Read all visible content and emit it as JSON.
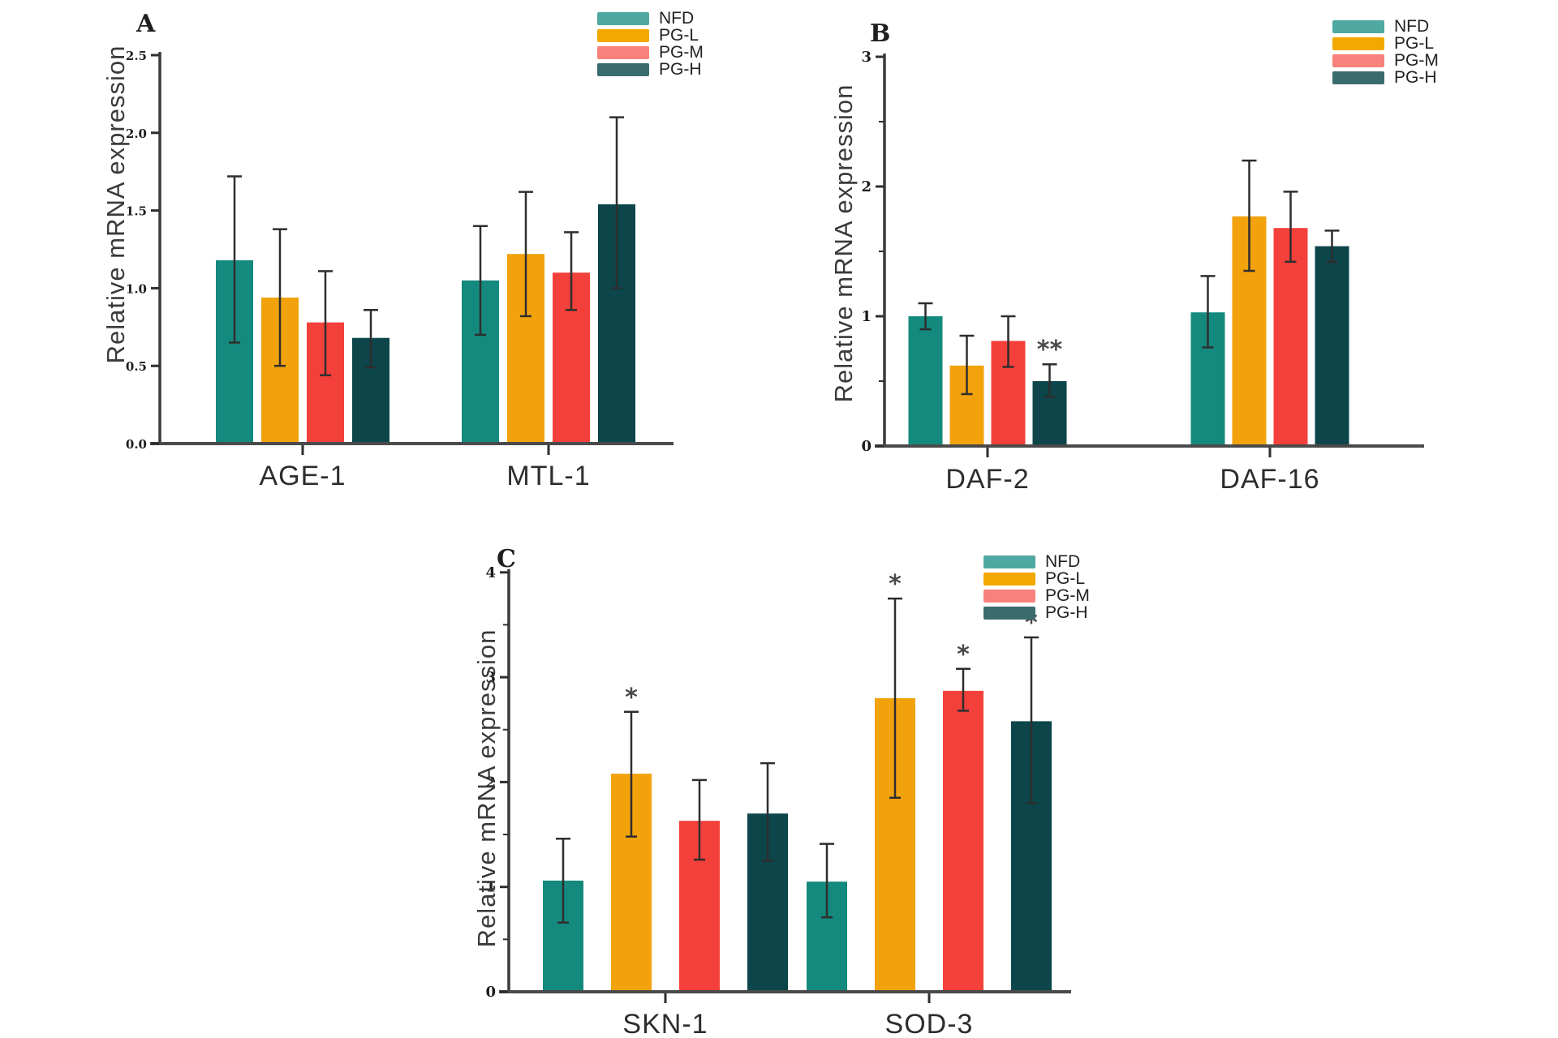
{
  "figure": {
    "background": "#ffffff"
  },
  "legend": {
    "labels": [
      "NFD",
      "PG-L",
      "PG-M",
      "PG-H"
    ],
    "swatch_colors": [
      "#4FA8A1",
      "#F2A800",
      "#F8827B",
      "#3A6B6D"
    ]
  },
  "bar_colors": [
    "#14897E",
    "#F2A20C",
    "#F4403A",
    "#0C454A"
  ],
  "error_color": "#2e2e2e",
  "sig_color": "#4a4a4a",
  "chart_data": [
    {
      "id": "A",
      "type": "bar",
      "letter": "A",
      "ylabel": "Relative mRNA expression",
      "xlabel": "",
      "ylim": [
        0,
        2.5
      ],
      "ytick_values": [
        0,
        0.5,
        1.0,
        1.5,
        2.0,
        2.5
      ],
      "ytick_labels": [
        "0.0",
        "0.5",
        "1.0",
        "1.5",
        "2.0",
        "2.5"
      ],
      "minor_tick_step": null,
      "grid": "off",
      "legend_position": "top-right-outside",
      "categories": [
        "AGE-1",
        "MTL-1"
      ],
      "series": [
        {
          "name": "NFD",
          "values": [
            1.18,
            1.05
          ],
          "err_low": [
            0.65,
            0.7
          ],
          "err_high": [
            1.72,
            1.4
          ],
          "sig": [
            "",
            ""
          ]
        },
        {
          "name": "PG-L",
          "values": [
            0.94,
            1.22
          ],
          "err_low": [
            0.5,
            0.82
          ],
          "err_high": [
            1.38,
            1.62
          ],
          "sig": [
            "",
            ""
          ]
        },
        {
          "name": "PG-M",
          "values": [
            0.78,
            1.1
          ],
          "err_low": [
            0.44,
            0.86
          ],
          "err_high": [
            1.11,
            1.36
          ],
          "sig": [
            "",
            ""
          ]
        },
        {
          "name": "PG-H",
          "values": [
            0.68,
            1.54
          ],
          "err_low": [
            0.49,
            1.0
          ],
          "err_high": [
            0.86,
            2.1
          ],
          "sig": [
            "",
            ""
          ]
        }
      ]
    },
    {
      "id": "B",
      "type": "bar",
      "letter": "B",
      "ylabel": "Relative mRNA expression",
      "xlabel": "",
      "ylim": [
        0,
        3
      ],
      "ytick_values": [
        0,
        1,
        2,
        3
      ],
      "ytick_labels": [
        "0",
        "1",
        "2",
        "3"
      ],
      "minor_tick_step": 0.5,
      "grid": "off",
      "legend_position": "top-right-outside",
      "categories": [
        "DAF-2",
        "DAF-16"
      ],
      "series": [
        {
          "name": "NFD",
          "values": [
            1.0,
            1.03
          ],
          "err_low": [
            0.9,
            0.76
          ],
          "err_high": [
            1.1,
            1.31
          ],
          "sig": [
            "",
            ""
          ]
        },
        {
          "name": "PG-L",
          "values": [
            0.62,
            1.77
          ],
          "err_low": [
            0.4,
            1.35
          ],
          "err_high": [
            0.85,
            2.2
          ],
          "sig": [
            "",
            ""
          ]
        },
        {
          "name": "PG-M",
          "values": [
            0.81,
            1.68
          ],
          "err_low": [
            0.61,
            1.42
          ],
          "err_high": [
            1.0,
            1.96
          ],
          "sig": [
            "",
            ""
          ]
        },
        {
          "name": "PG-H",
          "values": [
            0.5,
            1.54
          ],
          "err_low": [
            0.38,
            1.42
          ],
          "err_high": [
            0.63,
            1.66
          ],
          "sig": [
            "**",
            ""
          ]
        }
      ]
    },
    {
      "id": "C",
      "type": "bar",
      "letter": "C",
      "ylabel": "Relative mRNA expression",
      "xlabel": "",
      "ylim": [
        0,
        4
      ],
      "ytick_values": [
        0,
        1,
        2,
        3,
        4
      ],
      "ytick_labels": [
        "0",
        "1",
        "2",
        "3",
        "4"
      ],
      "minor_tick_step": 0.5,
      "grid": "off",
      "legend_position": "top-right-outside",
      "categories": [
        "SKN-1",
        "SOD-3"
      ],
      "series": [
        {
          "name": "NFD",
          "values": [
            1.06,
            1.05
          ],
          "err_low": [
            0.66,
            0.71
          ],
          "err_high": [
            1.46,
            1.41
          ],
          "sig": [
            "",
            ""
          ]
        },
        {
          "name": "PG-L",
          "values": [
            2.08,
            2.8
          ],
          "err_low": [
            1.48,
            1.85
          ],
          "err_high": [
            2.67,
            3.75
          ],
          "sig": [
            "*",
            "*"
          ]
        },
        {
          "name": "PG-M",
          "values": [
            1.63,
            2.87
          ],
          "err_low": [
            1.26,
            2.68
          ],
          "err_high": [
            2.02,
            3.08
          ],
          "sig": [
            "",
            "*"
          ]
        },
        {
          "name": "PG-H",
          "values": [
            1.7,
            2.58
          ],
          "err_low": [
            1.25,
            1.8
          ],
          "err_high": [
            2.18,
            3.38
          ],
          "sig": [
            "",
            "*"
          ]
        }
      ]
    }
  ]
}
